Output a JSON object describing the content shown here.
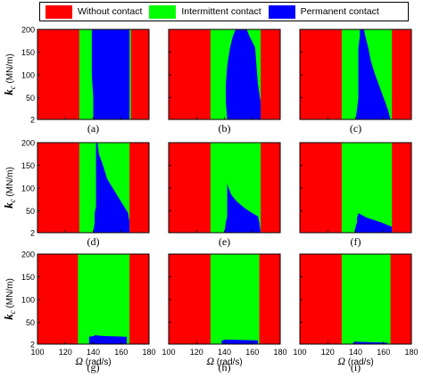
{
  "legend": {
    "items": [
      {
        "label": "Without contact",
        "color": "#ff0000"
      },
      {
        "label": "Intermittent contact",
        "color": "#00ff00"
      },
      {
        "label": "Permanent contact",
        "color": "#0000ff"
      }
    ]
  },
  "chart_data": {
    "type": "heatmap",
    "x_label_symbol": "Ω",
    "x_label_unit": "(rad/s)",
    "y_label_symbol": "k",
    "y_label_subscript": "c",
    "y_label_unit": "(MN/m)",
    "xlim": [
      100,
      180
    ],
    "ylim": [
      2,
      200
    ],
    "x_ticks": [
      100,
      120,
      140,
      160,
      180
    ],
    "y_ticks": [
      2,
      50,
      100,
      150,
      200
    ],
    "panels": [
      {
        "label": "(a)",
        "green_start": 130,
        "red_resume": 167,
        "blue": [
          [
            2,
            140,
            166
          ],
          [
            50,
            140,
            166
          ],
          [
            100,
            139,
            166
          ],
          [
            150,
            139,
            166
          ],
          [
            200,
            139,
            166
          ]
        ]
      },
      {
        "label": "(b)",
        "green_start": 130,
        "red_resume": 166,
        "blue": [
          [
            2,
            142,
            166
          ],
          [
            40,
            141,
            166
          ],
          [
            80,
            141,
            164
          ],
          [
            120,
            142,
            163
          ],
          [
            160,
            144,
            162
          ],
          [
            185,
            146,
            158
          ],
          [
            200,
            148,
            156
          ]
        ]
      },
      {
        "label": "(c)",
        "green_start": 130,
        "red_resume": 166,
        "blue": [
          [
            2,
            140,
            165
          ],
          [
            25,
            141,
            163
          ],
          [
            50,
            142,
            160
          ],
          [
            75,
            142,
            157
          ],
          [
            100,
            142,
            154
          ],
          [
            130,
            142,
            151
          ],
          [
            160,
            142,
            149
          ],
          [
            185,
            143,
            147
          ],
          [
            200,
            143,
            146
          ]
        ]
      },
      {
        "label": "(d)",
        "green_start": 130,
        "red_resume": 166,
        "blue": [
          [
            2,
            140,
            166
          ],
          [
            25,
            141,
            166
          ],
          [
            45,
            141,
            165
          ],
          [
            60,
            142,
            162
          ],
          [
            80,
            142,
            158
          ],
          [
            100,
            142,
            154
          ],
          [
            120,
            142,
            150
          ],
          [
            150,
            142,
            147
          ],
          [
            175,
            142,
            144
          ],
          [
            200,
            142,
            143
          ]
        ]
      },
      {
        "label": "(e)",
        "green_start": 130,
        "red_resume": 166,
        "blue": [
          [
            2,
            140,
            166
          ],
          [
            25,
            141,
            165
          ],
          [
            38,
            142,
            164
          ],
          [
            45,
            142,
            160
          ],
          [
            55,
            142,
            155
          ],
          [
            70,
            142,
            149
          ],
          [
            85,
            142,
            145
          ],
          [
            100,
            142,
            143
          ],
          [
            110,
            142,
            142
          ]
        ]
      },
      {
        "label": "(f)",
        "green_start": 130,
        "red_resume": 166,
        "blue": [
          [
            2,
            139,
            166
          ],
          [
            15,
            140,
            166
          ],
          [
            25,
            141,
            158
          ],
          [
            35,
            141,
            148
          ],
          [
            45,
            142,
            142
          ],
          [
            50,
            142,
            142
          ]
        ]
      },
      {
        "label": "(g)",
        "green_start": 129,
        "red_resume": 166,
        "blue": [
          [
            2,
            137,
            164
          ],
          [
            18,
            137,
            164
          ],
          [
            20,
            141,
            145
          ],
          [
            22,
            141,
            141
          ]
        ]
      },
      {
        "label": "(h)",
        "green_start": 130,
        "red_resume": 165,
        "blue": [
          [
            2,
            138,
            164
          ],
          [
            10,
            138,
            164
          ],
          [
            11,
            140,
            152
          ],
          [
            12,
            140,
            140
          ]
        ]
      },
      {
        "label": "(i)",
        "green_start": 130,
        "red_resume": 165,
        "blue": [
          [
            2,
            138,
            163
          ],
          [
            5,
            138,
            163
          ],
          [
            6,
            139,
            155
          ],
          [
            7,
            139,
            139
          ]
        ]
      }
    ]
  }
}
